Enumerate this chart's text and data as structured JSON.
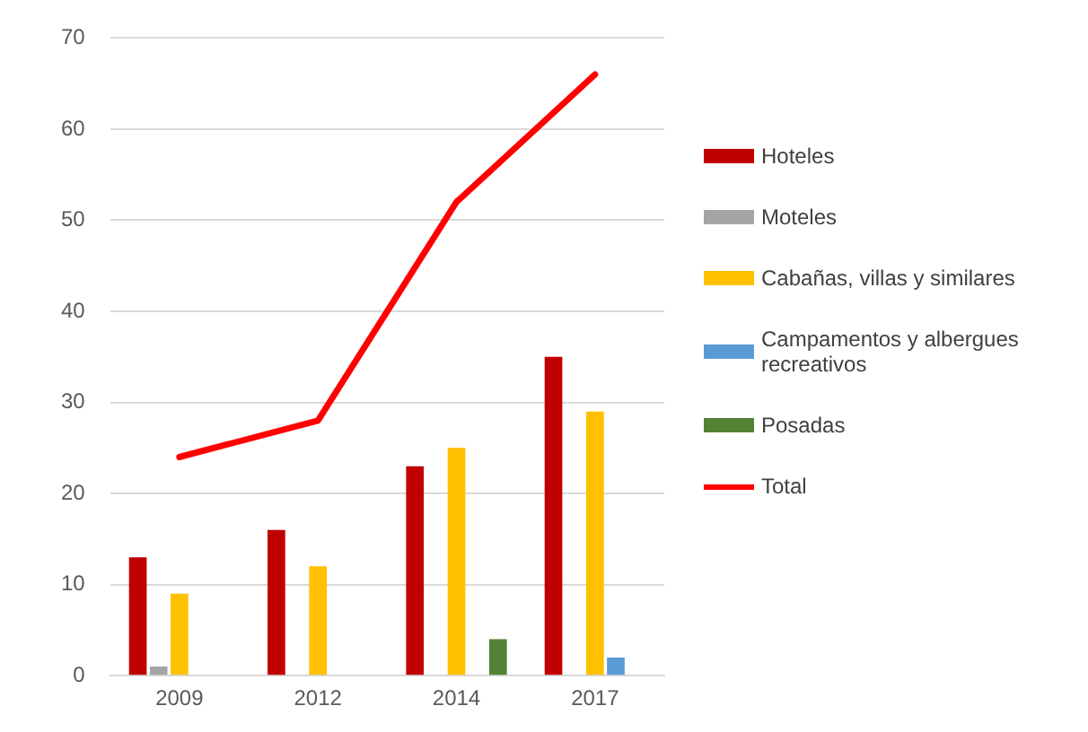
{
  "chart_data": {
    "type": "bar",
    "categories": [
      "2009",
      "2012",
      "2014",
      "2017"
    ],
    "series": [
      {
        "name": "Hoteles",
        "color": "#c00000",
        "values": [
          13,
          16,
          23,
          35
        ]
      },
      {
        "name": "Moteles",
        "color": "#a5a5a5",
        "values": [
          1,
          0,
          0,
          0
        ]
      },
      {
        "name": "Cabañas, villas y similares",
        "color": "#ffc000",
        "values": [
          9,
          12,
          25,
          29
        ]
      },
      {
        "name": "Campamentos y albergues recreativos",
        "color": "#5b9bd5",
        "values": [
          0,
          0,
          0,
          2
        ]
      },
      {
        "name": "Posadas",
        "color": "#548235",
        "values": [
          0,
          0,
          4,
          0
        ]
      },
      {
        "name": "Total",
        "type": "line",
        "color": "#ff0000",
        "values": [
          24,
          28,
          52,
          66
        ]
      }
    ],
    "ylim": [
      0,
      70
    ],
    "yticks": [
      0,
      10,
      20,
      30,
      40,
      50,
      60,
      70
    ],
    "grid": "y",
    "legend": "right",
    "marker": "none"
  }
}
